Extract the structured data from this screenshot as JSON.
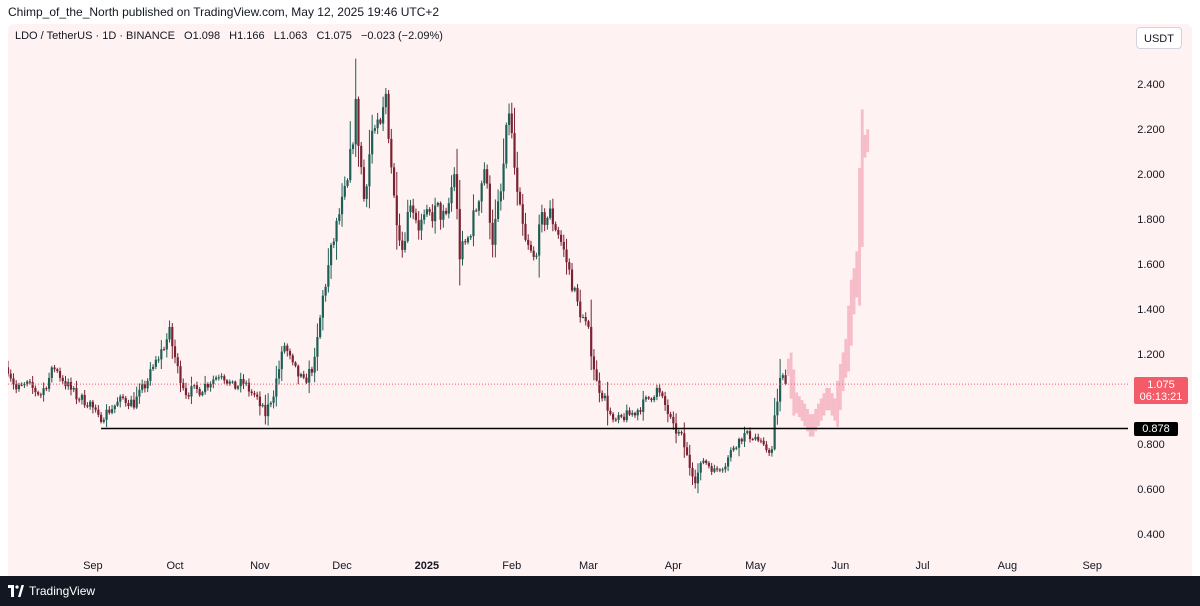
{
  "header": {
    "publisher_line": "Chimp_of_the_North published on TradingView.com, May 12, 2025 19:46 UTC+2"
  },
  "legend": {
    "symbol": "LDO / TetherUS · 1D · BINANCE",
    "open": "O1.098",
    "high": "H1.166",
    "low": "L1.063",
    "close": "C1.075",
    "change": "−0.023 (−2.09%)"
  },
  "price_scale": {
    "unit_button": "USDT"
  },
  "badges": {
    "last_price": "1.075",
    "countdown": "06:13:21",
    "support_level": "0.878"
  },
  "footer": {
    "brand": "TradingView"
  },
  "colors": {
    "up": "#26a69a",
    "down": "#ef5350",
    "last_price": "#f45b69",
    "projection": "#f5b8c4",
    "background": "#fff2f2"
  },
  "chart_data": {
    "type": "candlestick",
    "title": "LDO / TetherUS · 1D · BINANCE",
    "ylabel": "USDT",
    "ylim": [
      0.3,
      2.7
    ],
    "y_ticks": [
      "2.400",
      "2.200",
      "2.000",
      "1.800",
      "1.600",
      "1.400",
      "1.200",
      "1.000",
      "0.800",
      "0.600",
      "0.400"
    ],
    "x_ticks": [
      {
        "label": "Sep",
        "date": "2024-09-01"
      },
      {
        "label": "Oct",
        "date": "2024-10-01"
      },
      {
        "label": "Nov",
        "date": "2024-11-01"
      },
      {
        "label": "Dec",
        "date": "2024-12-01"
      },
      {
        "label": "2025",
        "date": "2025-01-01",
        "bold": true
      },
      {
        "label": "Feb",
        "date": "2025-02-01"
      },
      {
        "label": "Mar",
        "date": "2025-03-01"
      },
      {
        "label": "Apr",
        "date": "2025-04-01"
      },
      {
        "label": "May",
        "date": "2025-05-01"
      },
      {
        "label": "Jun",
        "date": "2025-06-01"
      },
      {
        "label": "Jul",
        "date": "2025-07-01"
      },
      {
        "label": "Aug",
        "date": "2025-08-01"
      },
      {
        "label": "Sep",
        "date": "2025-09-01"
      }
    ],
    "x_start": "2024-08-01",
    "last_price": 1.075,
    "horizontal_level": 0.878,
    "price_path": [
      [
        "2024-08-01",
        1.15
      ],
      [
        "2024-08-04",
        1.05
      ],
      [
        "2024-08-08",
        1.07
      ],
      [
        "2024-08-13",
        1.03
      ],
      [
        "2024-08-18",
        1.15
      ],
      [
        "2024-08-22",
        1.08
      ],
      [
        "2024-08-26",
        1.02
      ],
      [
        "2024-08-31",
        0.99
      ],
      [
        "2024-09-03",
        0.92
      ],
      [
        "2024-09-07",
        0.96
      ],
      [
        "2024-09-12",
        1.01
      ],
      [
        "2024-09-16",
        0.99
      ],
      [
        "2024-09-20",
        1.07
      ],
      [
        "2024-09-24",
        1.17
      ],
      [
        "2024-09-29",
        1.3
      ],
      [
        "2024-10-02",
        1.14
      ],
      [
        "2024-10-05",
        1.04
      ],
      [
        "2024-10-10",
        1.05
      ],
      [
        "2024-10-14",
        1.09
      ],
      [
        "2024-10-18",
        1.13
      ],
      [
        "2024-10-22",
        1.06
      ],
      [
        "2024-10-26",
        1.08
      ],
      [
        "2024-10-30",
        1.02
      ],
      [
        "2024-11-03",
        0.94
      ],
      [
        "2024-11-06",
        1.04
      ],
      [
        "2024-11-10",
        1.25
      ],
      [
        "2024-11-13",
        1.15
      ],
      [
        "2024-11-17",
        1.08
      ],
      [
        "2024-11-21",
        1.17
      ],
      [
        "2024-11-24",
        1.46
      ],
      [
        "2024-11-27",
        1.66
      ],
      [
        "2024-11-30",
        1.83
      ],
      [
        "2024-12-03",
        1.96
      ],
      [
        "2024-12-06",
        2.3
      ],
      [
        "2024-12-09",
        1.9
      ],
      [
        "2024-12-12",
        2.2
      ],
      [
        "2024-12-15",
        2.2
      ],
      [
        "2024-12-17",
        2.36
      ],
      [
        "2024-12-20",
        1.9
      ],
      [
        "2024-12-23",
        1.68
      ],
      [
        "2024-12-26",
        1.9
      ],
      [
        "2024-12-29",
        1.78
      ],
      [
        "2025-01-02",
        1.82
      ],
      [
        "2025-01-05",
        1.85
      ],
      [
        "2025-01-08",
        1.8
      ],
      [
        "2025-01-11",
        2.02
      ],
      [
        "2025-01-13",
        1.65
      ],
      [
        "2025-01-16",
        1.72
      ],
      [
        "2025-01-19",
        1.86
      ],
      [
        "2025-01-22",
        2.04
      ],
      [
        "2025-01-25",
        1.72
      ],
      [
        "2025-01-28",
        1.92
      ],
      [
        "2025-01-31",
        2.3
      ],
      [
        "2025-02-03",
        1.9
      ],
      [
        "2025-02-06",
        1.7
      ],
      [
        "2025-02-09",
        1.63
      ],
      [
        "2025-02-12",
        1.8
      ],
      [
        "2025-02-15",
        1.83
      ],
      [
        "2025-02-18",
        1.75
      ],
      [
        "2025-02-21",
        1.62
      ],
      [
        "2025-02-25",
        1.43
      ],
      [
        "2025-03-01",
        1.3
      ],
      [
        "2025-03-04",
        1.08
      ],
      [
        "2025-03-07",
        1.01
      ],
      [
        "2025-03-10",
        0.9
      ],
      [
        "2025-03-14",
        0.93
      ],
      [
        "2025-03-18",
        0.95
      ],
      [
        "2025-03-22",
        1.0
      ],
      [
        "2025-03-26",
        1.05
      ],
      [
        "2025-03-29",
        0.98
      ],
      [
        "2025-04-01",
        0.88
      ],
      [
        "2025-04-04",
        0.84
      ],
      [
        "2025-04-07",
        0.71
      ],
      [
        "2025-04-09",
        0.65
      ],
      [
        "2025-04-12",
        0.74
      ],
      [
        "2025-04-16",
        0.69
      ],
      [
        "2025-04-20",
        0.72
      ],
      [
        "2025-04-23",
        0.8
      ],
      [
        "2025-04-27",
        0.85
      ],
      [
        "2025-05-01",
        0.84
      ],
      [
        "2025-05-04",
        0.79
      ],
      [
        "2025-05-07",
        0.78
      ],
      [
        "2025-05-08",
        0.92
      ],
      [
        "2025-05-10",
        1.09
      ],
      [
        "2025-05-11",
        1.1
      ],
      [
        "2025-05-12",
        1.075
      ]
    ],
    "projection_path": [
      [
        "2025-05-13",
        1.15
      ],
      [
        "2025-05-15",
        1.0
      ],
      [
        "2025-05-18",
        0.95
      ],
      [
        "2025-05-21",
        0.88
      ],
      [
        "2025-05-24",
        0.95
      ],
      [
        "2025-05-27",
        1.02
      ],
      [
        "2025-05-30",
        0.95
      ],
      [
        "2025-06-01",
        1.1
      ],
      [
        "2025-06-03",
        1.22
      ],
      [
        "2025-06-05",
        1.45
      ],
      [
        "2025-06-07",
        1.6
      ],
      [
        "2025-06-09",
        2.12
      ],
      [
        "2025-06-11",
        2.17
      ]
    ]
  }
}
